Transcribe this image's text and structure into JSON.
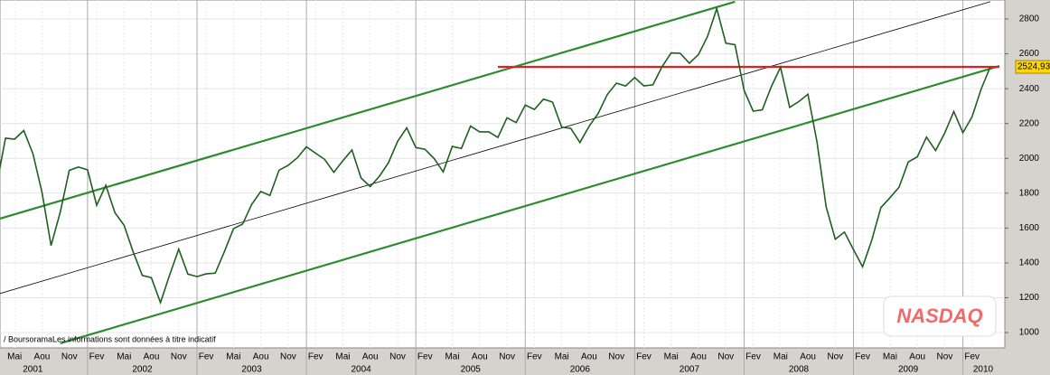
{
  "chart_data": {
    "type": "line",
    "title": "NASDAQ",
    "source": "/ BoursoramaLes informations sont données à titre indicatif",
    "series": [
      {
        "color": "#1f5f1f",
        "x": [
          "2001-03",
          "2001-04",
          "2001-05",
          "2001-06",
          "2001-07",
          "2001-08",
          "2001-09",
          "2001-10",
          "2001-11",
          "2001-12",
          "2002-01",
          "2002-02",
          "2002-03",
          "2002-04",
          "2002-05",
          "2002-06",
          "2002-07",
          "2002-08",
          "2002-09",
          "2002-10",
          "2002-11",
          "2002-12",
          "2003-01",
          "2003-02",
          "2003-03",
          "2003-04",
          "2003-05",
          "2003-06",
          "2003-07",
          "2003-08",
          "2003-09",
          "2003-10",
          "2003-11",
          "2003-12",
          "2004-01",
          "2004-02",
          "2004-03",
          "2004-04",
          "2004-05",
          "2004-06",
          "2004-07",
          "2004-08",
          "2004-09",
          "2004-10",
          "2004-11",
          "2004-12",
          "2005-01",
          "2005-02",
          "2005-03",
          "2005-04",
          "2005-05",
          "2005-06",
          "2005-07",
          "2005-08",
          "2005-09",
          "2005-10",
          "2005-11",
          "2005-12",
          "2006-01",
          "2006-02",
          "2006-03",
          "2006-04",
          "2006-05",
          "2006-06",
          "2006-07",
          "2006-08",
          "2006-09",
          "2006-10",
          "2006-11",
          "2006-12",
          "2007-01",
          "2007-02",
          "2007-03",
          "2007-04",
          "2007-05",
          "2007-06",
          "2007-07",
          "2007-08",
          "2007-09",
          "2007-10",
          "2007-11",
          "2007-12",
          "2008-01",
          "2008-02",
          "2008-03",
          "2008-04",
          "2008-05",
          "2008-06",
          "2008-07",
          "2008-08",
          "2008-09",
          "2008-10",
          "2008-11",
          "2008-12",
          "2009-01",
          "2009-02",
          "2009-03",
          "2009-04",
          "2009-05",
          "2009-06",
          "2009-07",
          "2009-08",
          "2009-09",
          "2009-10",
          "2009-11",
          "2009-12",
          "2010-01",
          "2010-02",
          "2010-03",
          "2010-04"
        ],
        "values": [
          1840,
          2116,
          2110,
          2160,
          2027,
          1805,
          1499,
          1690,
          1931,
          1950,
          1934,
          1731,
          1845,
          1688,
          1616,
          1463,
          1328,
          1315,
          1172,
          1330,
          1479,
          1336,
          1321,
          1337,
          1341,
          1464,
          1596,
          1623,
          1735,
          1810,
          1787,
          1932,
          1960,
          2003,
          2066,
          2030,
          1994,
          1920,
          1987,
          2048,
          1887,
          1838,
          1897,
          1975,
          2097,
          2175,
          2062,
          2052,
          1999,
          1922,
          2068,
          2057,
          2185,
          2152,
          2152,
          2120,
          2233,
          2205,
          2306,
          2281,
          2340,
          2323,
          2179,
          2172,
          2091,
          2184,
          2258,
          2367,
          2432,
          2415,
          2464,
          2416,
          2422,
          2525,
          2605,
          2603,
          2546,
          2596,
          2701,
          2859,
          2661,
          2652,
          2390,
          2271,
          2279,
          2413,
          2523,
          2293,
          2326,
          2368,
          2092,
          1721,
          1536,
          1577,
          1476,
          1378,
          1529,
          1717,
          1774,
          1835,
          1979,
          2009,
          2122,
          2045,
          2145,
          2269,
          2147,
          2238,
          2398,
          2525
        ]
      }
    ],
    "trendlines": [
      {
        "color": "#2e8b2e",
        "from": [
          "2001-03",
          1648
        ],
        "to": [
          "2007-12",
          2899
        ]
      },
      {
        "color": "#2e8b2e",
        "from": [
          "2001-10",
          938
        ],
        "to": [
          "2010-05",
          2530
        ]
      },
      {
        "color": "#000000",
        "from": [
          "2001-03",
          1218
        ],
        "to": [
          "2010-04",
          2899
        ]
      },
      {
        "color": "#e02020",
        "from": [
          "2005-10",
          2525
        ],
        "to": [
          "2010-05",
          2525
        ]
      }
    ],
    "last_price": {
      "value": 2524.93,
      "label": "2524,93"
    },
    "xlim": [
      "2001-03",
      "2010-05"
    ],
    "ylim": [
      912,
      2909
    ],
    "yticks": [
      1000,
      1200,
      1400,
      1600,
      1800,
      2000,
      2200,
      2400,
      2600,
      2800
    ],
    "xticks": [
      {
        "value": "2001-05",
        "label": "Mai"
      },
      {
        "value": "2001-08",
        "label": "Aou"
      },
      {
        "value": "2001-11",
        "label": "Nov"
      },
      {
        "value": "2002-02",
        "label": "Fev"
      },
      {
        "value": "2002-05",
        "label": "Mai"
      },
      {
        "value": "2002-08",
        "label": "Aou"
      },
      {
        "value": "2002-11",
        "label": "Nov"
      },
      {
        "value": "2003-02",
        "label": "Fev"
      },
      {
        "value": "2003-05",
        "label": "Mai"
      },
      {
        "value": "2003-08",
        "label": "Aou"
      },
      {
        "value": "2003-11",
        "label": "Nov"
      },
      {
        "value": "2004-02",
        "label": "Fev"
      },
      {
        "value": "2004-05",
        "label": "Mai"
      },
      {
        "value": "2004-08",
        "label": "Aou"
      },
      {
        "value": "2004-11",
        "label": "Nov"
      },
      {
        "value": "2005-02",
        "label": "Fev"
      },
      {
        "value": "2005-05",
        "label": "Mai"
      },
      {
        "value": "2005-08",
        "label": "Aou"
      },
      {
        "value": "2005-11",
        "label": "Nov"
      },
      {
        "value": "2006-02",
        "label": "Fev"
      },
      {
        "value": "2006-05",
        "label": "Mai"
      },
      {
        "value": "2006-08",
        "label": "Aou"
      },
      {
        "value": "2006-11",
        "label": "Nov"
      },
      {
        "value": "2007-02",
        "label": "Fev"
      },
      {
        "value": "2007-05",
        "label": "Mai"
      },
      {
        "value": "2007-08",
        "label": "Aou"
      },
      {
        "value": "2007-11",
        "label": "Nov"
      },
      {
        "value": "2008-02",
        "label": "Fev"
      },
      {
        "value": "2008-05",
        "label": "Mai"
      },
      {
        "value": "2008-08",
        "label": "Aou"
      },
      {
        "value": "2008-11",
        "label": "Nov"
      },
      {
        "value": "2009-02",
        "label": "Fev"
      },
      {
        "value": "2009-05",
        "label": "Mai"
      },
      {
        "value": "2009-08",
        "label": "Aou"
      },
      {
        "value": "2009-11",
        "label": "Nov"
      },
      {
        "value": "2010-02",
        "label": "Fev"
      }
    ],
    "years": [
      2001,
      2002,
      2003,
      2004,
      2005,
      2006,
      2007,
      2008,
      2009,
      2010
    ],
    "grid": true
  }
}
